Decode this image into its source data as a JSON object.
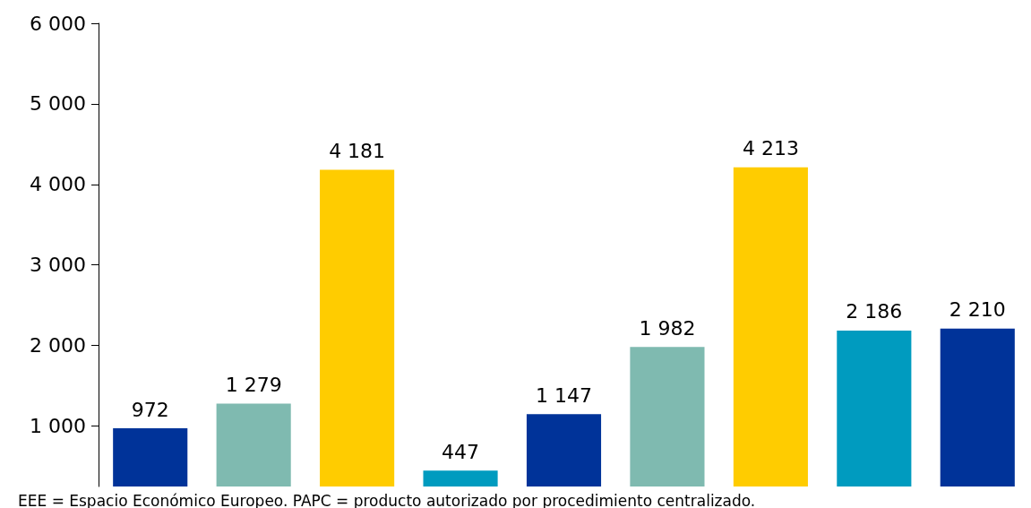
{
  "chart_data": {
    "type": "bar",
    "categories": [
      null,
      null,
      null,
      null,
      null,
      null,
      null,
      null,
      null
    ],
    "values": [
      972,
      1279,
      4181,
      447,
      1147,
      1982,
      4213,
      2186,
      2210
    ],
    "colors": [
      "#003399",
      "#7fbab0",
      "#ffcc00",
      "#009bbf",
      "#003399",
      "#7fbab0",
      "#ffcc00",
      "#009bbf",
      "#003399"
    ],
    "value_labels": [
      "972",
      "1 279",
      "4 181",
      "447",
      "1 147",
      "1 982",
      "4 213",
      "2 186",
      "2 210"
    ],
    "ylim": [
      250,
      6000
    ],
    "yticks": [
      {
        "value": 1000,
        "label": "1 000"
      },
      {
        "value": 2000,
        "label": "2 000"
      },
      {
        "value": 3000,
        "label": "3 000"
      },
      {
        "value": 4000,
        "label": "4 000"
      },
      {
        "value": 5000,
        "label": "5 000"
      },
      {
        "value": 6000,
        "label": "6 000"
      }
    ],
    "grid": false,
    "annotations": [
      "EEE = Espacio Económico Europeo. PAPC = producto autorizado por procedimiento centralizado."
    ]
  }
}
